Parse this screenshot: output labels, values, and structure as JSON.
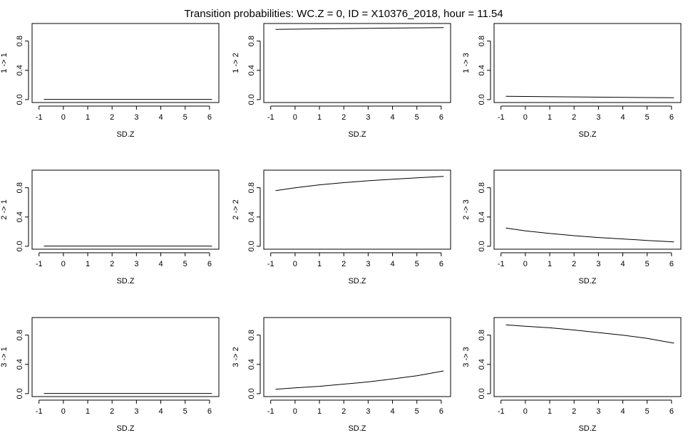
{
  "figure": {
    "title": "Transition probabilities: WC.Z = 0, ID = X10376_2018, hour = 11.54"
  },
  "chart_data": [
    {
      "type": "line",
      "xlabel": "SD.Z",
      "ylabel": "1 -> 1",
      "xlim": [
        -1,
        6.1
      ],
      "ylim": [
        0,
        1
      ],
      "xticks": [
        -1,
        0,
        1,
        2,
        3,
        4,
        5,
        6
      ],
      "yticks": [
        0.0,
        0.4,
        0.8
      ],
      "x": [
        -0.8,
        6.1
      ],
      "y": [
        0.003,
        0.003
      ]
    },
    {
      "type": "line",
      "xlabel": "SD.Z",
      "ylabel": "1 -> 2",
      "xlim": [
        -1,
        6.1
      ],
      "ylim": [
        0,
        1
      ],
      "xticks": [
        -1,
        0,
        1,
        2,
        3,
        4,
        5,
        6
      ],
      "yticks": [
        0.0,
        0.4,
        0.8
      ],
      "x": [
        -0.8,
        6.1
      ],
      "y": [
        0.96,
        0.985
      ]
    },
    {
      "type": "line",
      "xlabel": "SD.Z",
      "ylabel": "1 -> 3",
      "xlim": [
        -1,
        6.1
      ],
      "ylim": [
        0,
        1
      ],
      "xticks": [
        -1,
        0,
        1,
        2,
        3,
        4,
        5,
        6
      ],
      "yticks": [
        0.0,
        0.4,
        0.8
      ],
      "x": [
        -0.8,
        6.1
      ],
      "y": [
        0.045,
        0.025
      ]
    },
    {
      "type": "line",
      "xlabel": "SD.Z",
      "ylabel": "2 -> 1",
      "xlim": [
        -1,
        6.1
      ],
      "ylim": [
        0,
        1
      ],
      "xticks": [
        -1,
        0,
        1,
        2,
        3,
        4,
        5,
        6
      ],
      "yticks": [
        0.0,
        0.4,
        0.8
      ],
      "x": [
        -0.8,
        6.1
      ],
      "y": [
        0.003,
        0.003
      ]
    },
    {
      "type": "line",
      "xlabel": "SD.Z",
      "ylabel": "2 -> 2",
      "xlim": [
        -1,
        6.1
      ],
      "ylim": [
        0,
        1
      ],
      "xticks": [
        -1,
        0,
        1,
        2,
        3,
        4,
        5,
        6
      ],
      "yticks": [
        0.0,
        0.4,
        0.8
      ],
      "x": [
        -0.8,
        0,
        1,
        2,
        3,
        4,
        5,
        6.1
      ],
      "y": [
        0.76,
        0.8,
        0.84,
        0.87,
        0.895,
        0.915,
        0.935,
        0.955
      ]
    },
    {
      "type": "line",
      "xlabel": "SD.Z",
      "ylabel": "2 -> 3",
      "xlim": [
        -1,
        6.1
      ],
      "ylim": [
        0,
        1
      ],
      "xticks": [
        -1,
        0,
        1,
        2,
        3,
        4,
        5,
        6
      ],
      "yticks": [
        0.0,
        0.4,
        0.8
      ],
      "x": [
        -0.8,
        0,
        1,
        2,
        3,
        4,
        5,
        6.1
      ],
      "y": [
        0.25,
        0.21,
        0.175,
        0.145,
        0.12,
        0.1,
        0.08,
        0.06
      ]
    },
    {
      "type": "line",
      "xlabel": "SD.Z",
      "ylabel": "3 -> 1",
      "xlim": [
        -1,
        6.1
      ],
      "ylim": [
        0,
        1
      ],
      "xticks": [
        -1,
        0,
        1,
        2,
        3,
        4,
        5,
        6
      ],
      "yticks": [
        0.0,
        0.4,
        0.8
      ],
      "x": [
        -0.8,
        6.1
      ],
      "y": [
        0.003,
        0.003
      ]
    },
    {
      "type": "line",
      "xlabel": "SD.Z",
      "ylabel": "3 -> 2",
      "xlim": [
        -1,
        6.1
      ],
      "ylim": [
        0,
        1
      ],
      "xticks": [
        -1,
        0,
        1,
        2,
        3,
        4,
        5,
        6
      ],
      "yticks": [
        0.0,
        0.4,
        0.8
      ],
      "x": [
        -0.8,
        0,
        1,
        2,
        3,
        4,
        5,
        6.1
      ],
      "y": [
        0.06,
        0.08,
        0.1,
        0.13,
        0.16,
        0.2,
        0.245,
        0.31
      ]
    },
    {
      "type": "line",
      "xlabel": "SD.Z",
      "ylabel": "3 -> 3",
      "xlim": [
        -1,
        6.1
      ],
      "ylim": [
        0,
        1
      ],
      "xticks": [
        -1,
        0,
        1,
        2,
        3,
        4,
        5,
        6
      ],
      "yticks": [
        0.0,
        0.4,
        0.8
      ],
      "x": [
        -0.8,
        0,
        1,
        2,
        3,
        4,
        5,
        6.1
      ],
      "y": [
        0.94,
        0.92,
        0.9,
        0.87,
        0.835,
        0.8,
        0.755,
        0.69
      ]
    }
  ]
}
